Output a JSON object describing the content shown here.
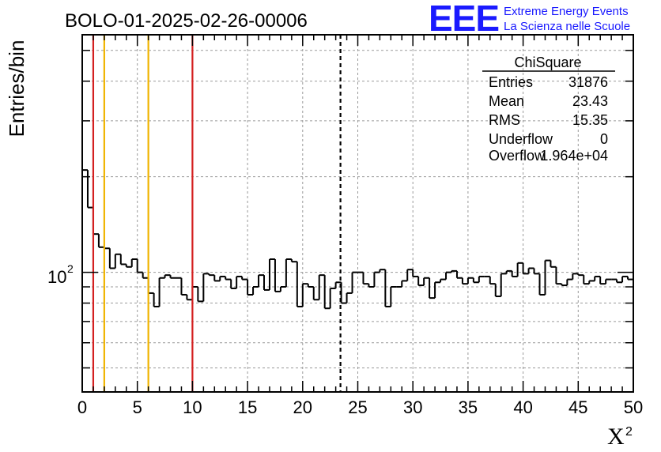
{
  "chart_data": {
    "type": "histogram",
    "title": "BOLO-01-2025-02-26-00006",
    "ylabel": "Entries/bin",
    "xlabel": "X",
    "xlabel_superscript": "2",
    "xlim": [
      0,
      50
    ],
    "ylim": [
      42,
      560
    ],
    "yscale": "log",
    "grid": true,
    "bin_width": 0.5,
    "x_ticks": [
      "0",
      "5",
      "10",
      "15",
      "20",
      "25",
      "30",
      "35",
      "40",
      "45",
      "50"
    ],
    "y_tick_label_base": "10",
    "y_tick_label_exp": "2",
    "bin_values": [
      210,
      160,
      132,
      120,
      119,
      103,
      114,
      106,
      104,
      110,
      100,
      96,
      86,
      78,
      96,
      98,
      96,
      96,
      85,
      82,
      90,
      81,
      99,
      98,
      94,
      97,
      95,
      89,
      97,
      95,
      85,
      90,
      98,
      88,
      110,
      87,
      90,
      110,
      108,
      78,
      92,
      90,
      82,
      98,
      77,
      89,
      93,
      80,
      86,
      100,
      100,
      92,
      90,
      100,
      102,
      78,
      90,
      90,
      94,
      102,
      97,
      91,
      96,
      83,
      93,
      95,
      100,
      101,
      96,
      92,
      96,
      93,
      97,
      97,
      92,
      84,
      99,
      101,
      97,
      107,
      99,
      103,
      99,
      85,
      109,
      104,
      92,
      91,
      95,
      99,
      98,
      92,
      94,
      97,
      92,
      95,
      95,
      93,
      97,
      95
    ],
    "vertical_lines": [
      {
        "x": 1,
        "color": "#d42020",
        "style": "solid"
      },
      {
        "x": 2,
        "color": "#f0b400",
        "style": "solid"
      },
      {
        "x": 6,
        "color": "#f0b400",
        "style": "solid"
      },
      {
        "x": 10,
        "color": "#d42020",
        "style": "solid"
      },
      {
        "x": 23.43,
        "color": "#000000",
        "style": "dashed"
      }
    ],
    "stats_box": {
      "title": "ChiSquare",
      "rows": [
        {
          "label": "Entries",
          "value": "31876"
        },
        {
          "label": "Mean",
          "value": "23.43"
        },
        {
          "label": "RMS",
          "value": "15.35"
        },
        {
          "label": "Underflow",
          "value": "0"
        },
        {
          "label": "Overflow",
          "value": "1.964e+04"
        }
      ]
    }
  },
  "logo": {
    "letters": "EEE",
    "line1": "Extreme Energy Events",
    "line2": "La Scienza nelle Scuole",
    "color": "#1a1aff"
  }
}
